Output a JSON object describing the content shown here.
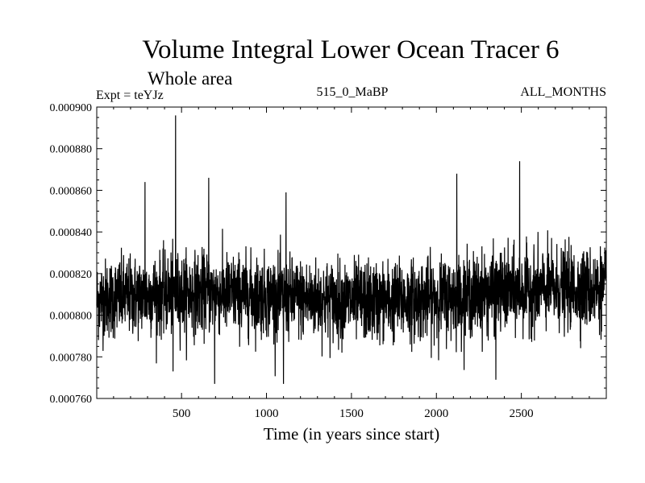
{
  "chart_data": {
    "type": "line",
    "title": "Volume Integral Lower Ocean Tracer 6",
    "subtitle": "Whole area",
    "expt_label": "Expt = teYJz",
    "period_label": "515_0_MaBP",
    "months_label": "ALL_MONTHS",
    "xlabel": "Time (in years since start)",
    "ylabel": "",
    "xlim": [
      1,
      3000
    ],
    "ylim": [
      0.00076,
      0.0009
    ],
    "x_ticks": [
      500,
      1000,
      1500,
      2000,
      2500
    ],
    "y_ticks": [
      "0.000760",
      "0.000780",
      "0.000800",
      "0.000820",
      "0.000840",
      "0.000860",
      "0.000880",
      "0.000900"
    ],
    "series": [
      {
        "name": "Lower Ocean Tracer 6",
        "color": "#000000",
        "mean": 0.000809,
        "noise_sd": 9.5e-06,
        "n_points": 3000,
        "spikes": [
          {
            "x": 465,
            "y": 0.000896
          },
          {
            "x": 285,
            "y": 0.000864
          },
          {
            "x": 660,
            "y": 0.000866
          },
          {
            "x": 2120,
            "y": 0.000868
          },
          {
            "x": 2490,
            "y": 0.000874
          },
          {
            "x": 1115,
            "y": 0.000859
          },
          {
            "x": 695,
            "y": 0.000767
          },
          {
            "x": 1100,
            "y": 0.000767
          },
          {
            "x": 2350,
            "y": 0.000769
          },
          {
            "x": 450,
            "y": 0.000773
          }
        ]
      }
    ]
  }
}
